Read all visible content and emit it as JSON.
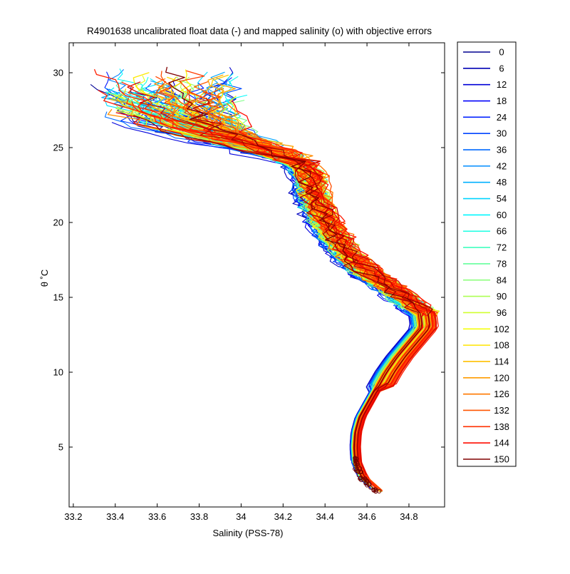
{
  "chart_data": {
    "type": "line",
    "title": "R4901638 uncalibrated float data (-) and mapped salinity (o) with objective errors",
    "xlabel": "Salinity (PSS-78)",
    "ylabel": "θ ˚C",
    "xlim": [
      33.18,
      34.97
    ],
    "ylim": [
      1,
      32
    ],
    "xticks": [
      "33.2",
      "33.4",
      "33.6",
      "33.8",
      "34",
      "34.2",
      "34.4",
      "34.6",
      "34.8"
    ],
    "yticks": [
      "5",
      "10",
      "15",
      "20",
      "25",
      "30"
    ],
    "grid": false,
    "legend_position": "outside-right",
    "legend": [
      {
        "label": "0",
        "color": "#00008f"
      },
      {
        "label": "6",
        "color": "#0000b3"
      },
      {
        "label": "12",
        "color": "#0000d7"
      },
      {
        "label": "18",
        "color": "#0000fb"
      },
      {
        "label": "24",
        "color": "#0020ff"
      },
      {
        "label": "30",
        "color": "#0044ff"
      },
      {
        "label": "36",
        "color": "#0068ff"
      },
      {
        "label": "42",
        "color": "#008cff"
      },
      {
        "label": "48",
        "color": "#00b0ff"
      },
      {
        "label": "54",
        "color": "#00d4ff"
      },
      {
        "label": "60",
        "color": "#00f8ff"
      },
      {
        "label": "66",
        "color": "#1cffe3"
      },
      {
        "label": "72",
        "color": "#40ffbf"
      },
      {
        "label": "78",
        "color": "#64ff9b"
      },
      {
        "label": "84",
        "color": "#88ff77"
      },
      {
        "label": "90",
        "color": "#acff53"
      },
      {
        "label": "96",
        "color": "#d0ff2f"
      },
      {
        "label": "102",
        "color": "#f4ff0b"
      },
      {
        "label": "108",
        "color": "#ffe400"
      },
      {
        "label": "114",
        "color": "#ffc000"
      },
      {
        "label": "120",
        "color": "#ff9c00"
      },
      {
        "label": "126",
        "color": "#ff7800"
      },
      {
        "label": "132",
        "color": "#ff5400"
      },
      {
        "label": "138",
        "color": "#ff3000"
      },
      {
        "label": "144",
        "color": "#ff0c00"
      },
      {
        "label": "150",
        "color": "#800000"
      }
    ],
    "profile_shape": {
      "theta": [
        2.0,
        3.0,
        4.0,
        5.0,
        6.0,
        7.0,
        8.0,
        9.0,
        10.0,
        11.0,
        12.0,
        13.0,
        14.0,
        15.0,
        16.0,
        17.0,
        18.0,
        19.0,
        20.0,
        21.0,
        22.0,
        23.0,
        24.0,
        25.0,
        26.0,
        27.0,
        28.0,
        29.0,
        30.0
      ],
      "salinity": [
        34.65,
        34.57,
        34.54,
        34.535,
        34.54,
        34.56,
        34.6,
        34.64,
        34.68,
        34.73,
        34.79,
        34.85,
        34.84,
        34.74,
        34.64,
        34.54,
        34.47,
        34.42,
        34.37,
        34.34,
        34.31,
        34.3,
        34.25,
        34.18,
        34.0,
        33.85,
        33.72,
        33.62,
        33.55
      ]
    },
    "notes": "Approximately 150 overlaid theta-salinity profiles, colored by profile number from dark blue (0) to dark red (150)."
  }
}
